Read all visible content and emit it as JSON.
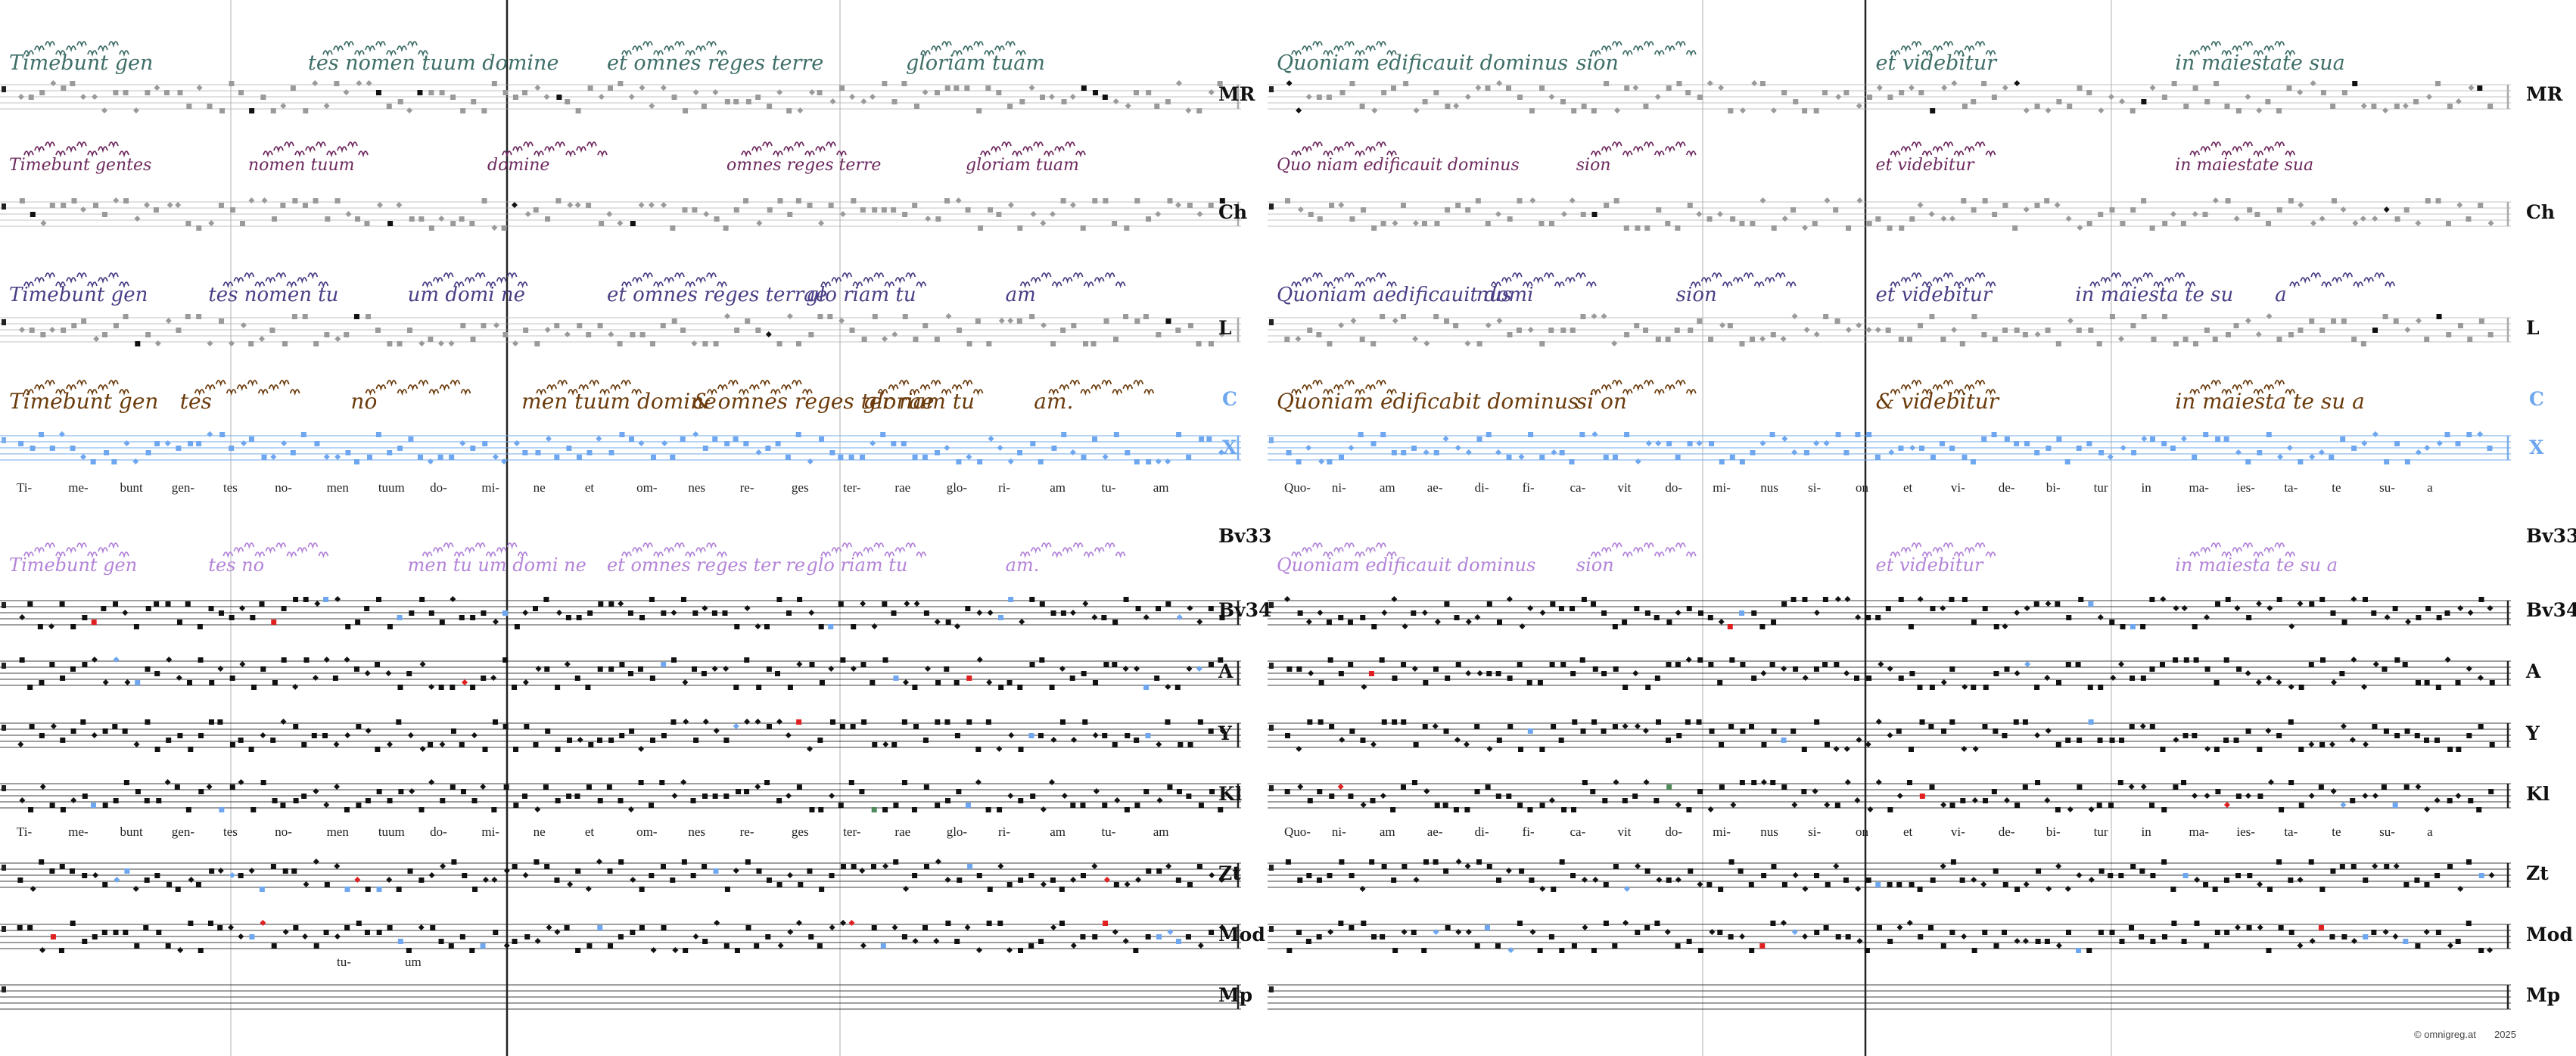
{
  "colors": {
    "MR": "#3e6e68",
    "Ch": "#6e2a5f",
    "L": "#4a3f86",
    "C": "#6b3b0c",
    "Bv33": "#b384d8",
    "X": "#7aaeea",
    "accent_red": "#e02020",
    "accent_blue": "#6ea7ef",
    "accent_green": "#4e8a5a",
    "note": "#111111",
    "grey_note": "#9a9a9a"
  },
  "labels": {
    "MR": "MR",
    "Ch": "Ch",
    "L": "L",
    "C": "C",
    "X": "X",
    "Bv33": "Bv33",
    "Bv34": "Bv34",
    "A": "A",
    "Y": "Y",
    "Kl": "Kl",
    "Zt": "Zt",
    "Mod": "Mod",
    "Mp": "Mp"
  },
  "scripts": {
    "MR_left": [
      "Timebunt gen",
      "tes nomen tuum domine",
      "et omnes reges terre",
      "gloriam tuam"
    ],
    "MR_right": [
      "Quoniam edificauit dominus",
      "sion",
      "et videbitur",
      "in maiestate sua"
    ],
    "Ch_left": [
      "Timebunt gentes",
      "nomen tuum",
      "domine",
      "omnes reges terre",
      "gloriam tuam"
    ],
    "Ch_right": [
      "Quo niam edificauit dominus",
      "sion",
      "et videbitur",
      "in maiestate sua"
    ],
    "L_left": [
      "Timebunt gen",
      "tes nomen tu",
      "um domi ne",
      "et omnes reges terrae",
      "glo riam tu",
      "am"
    ],
    "L_right": [
      "Quoniam aedificauit domi",
      "nus",
      "sion",
      "et videbitur",
      "in maiesta te su",
      "a"
    ],
    "C_left": [
      "Timebunt gen",
      "tes",
      "no",
      "men tuum domine",
      "& omnes reges ter rae",
      "gloriam tu",
      "am."
    ],
    "C_right": [
      "Quoniam edificabit dominus",
      "si on",
      "& videbitur",
      "in maiesta te su a"
    ],
    "Bv33_left": [
      "Timebunt gen",
      "tes no",
      "men tu um domi ne",
      "et omnes reges ter re",
      "glo riam tu",
      "am."
    ],
    "Bv33_right": [
      "Quoniam edificauit dominus",
      "sion",
      "et videbitur",
      "in maiesta te su a"
    ]
  },
  "syllables_top": {
    "left": [
      "Ti-",
      "me-",
      "bunt",
      "gen-",
      "tes",
      "no-",
      "men",
      "tuum",
      "do-",
      "mi-",
      "ne",
      "et",
      "om-",
      "nes",
      "re-",
      "ges",
      "ter-",
      "rae",
      "glo-",
      "ri-",
      "am",
      "tu-",
      "am"
    ],
    "right": [
      "Quo-",
      "ni-",
      "am",
      "ae-",
      "di-",
      "fi-",
      "ca-",
      "vit",
      "do-",
      "mi-",
      "nus",
      "si-",
      "on",
      "et",
      "vi-",
      "de-",
      "bi-",
      "tur",
      "in",
      "ma-",
      "ies-",
      "ta-",
      "te",
      "su-",
      "a"
    ]
  },
  "syllables_bottom": {
    "left": [
      "Ti-",
      "me-",
      "bunt",
      "gen-",
      "tes",
      "no-",
      "men",
      "tuum",
      "do-",
      "mi-",
      "ne",
      "et",
      "om-",
      "nes",
      "re-",
      "ges",
      "ter-",
      "rae",
      "glo-",
      "ri-",
      "am",
      "tu-",
      "am"
    ],
    "right": [
      "Quo-",
      "ni-",
      "am",
      "ae-",
      "di-",
      "fi-",
      "ca-",
      "vit",
      "do-",
      "mi-",
      "nus",
      "si-",
      "on",
      "et",
      "vi-",
      "de-",
      "bi-",
      "tur",
      "in",
      "ma-",
      "ies-",
      "ta-",
      "te",
      "su-",
      "a"
    ]
  },
  "mod_variant": [
    "tu-",
    "um"
  ],
  "copyright": "© omnigreg.at",
  "year": "2025"
}
